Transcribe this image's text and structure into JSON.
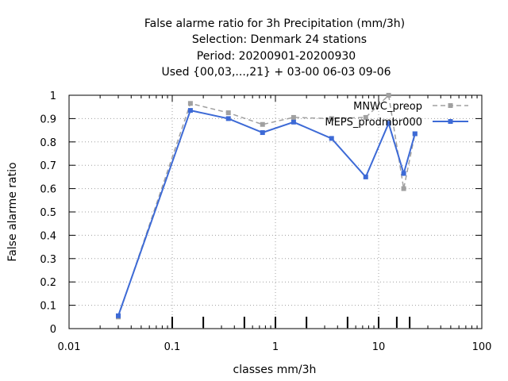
{
  "chart_data": {
    "type": "line",
    "title_lines": [
      "False alarme ratio  for 3h Precipitation (mm/3h)",
      "Selection: Denmark     24 stations",
      "Period: 20200901-20200930",
      "Used {00,03,...,21} + 03-00 06-03 09-06"
    ],
    "xlabel": "classes mm/3h",
    "ylabel": "False alarme ratio",
    "x_scale": "log",
    "xlim": [
      0.01,
      100
    ],
    "ylim": [
      0,
      1
    ],
    "x_ticks": [
      "0.01",
      "0.1",
      "1",
      "10",
      "100"
    ],
    "y_ticks": [
      "0",
      "0.1",
      "0.2",
      "0.3",
      "0.4",
      "0.5",
      "0.6",
      "0.7",
      "0.8",
      "0.9",
      "1"
    ],
    "grid": true,
    "legend_position": "top-right",
    "class_thresholds": [
      0.1,
      0.2,
      0.5,
      1,
      2,
      5,
      10,
      15,
      20
    ],
    "series": [
      {
        "name": "MNWC_preop",
        "color": "#a0a0a0",
        "style": "dashed",
        "x": [
          0.03,
          0.15,
          0.35,
          0.75,
          1.5,
          3.5,
          7.5,
          12.5,
          17.5,
          22.5
        ],
        "y": [
          0.05,
          0.965,
          0.925,
          0.875,
          0.905,
          0.9,
          0.905,
          1.0,
          0.6,
          0.835
        ]
      },
      {
        "name": "MEPS_prodmbr000",
        "color": "#3d6ad6",
        "style": "solid",
        "x": [
          0.03,
          0.15,
          0.35,
          0.75,
          1.5,
          3.5,
          7.5,
          12.5,
          17.5,
          22.5
        ],
        "y": [
          0.055,
          0.935,
          0.9,
          0.84,
          0.885,
          0.815,
          0.65,
          0.88,
          0.665,
          0.835
        ]
      }
    ]
  }
}
